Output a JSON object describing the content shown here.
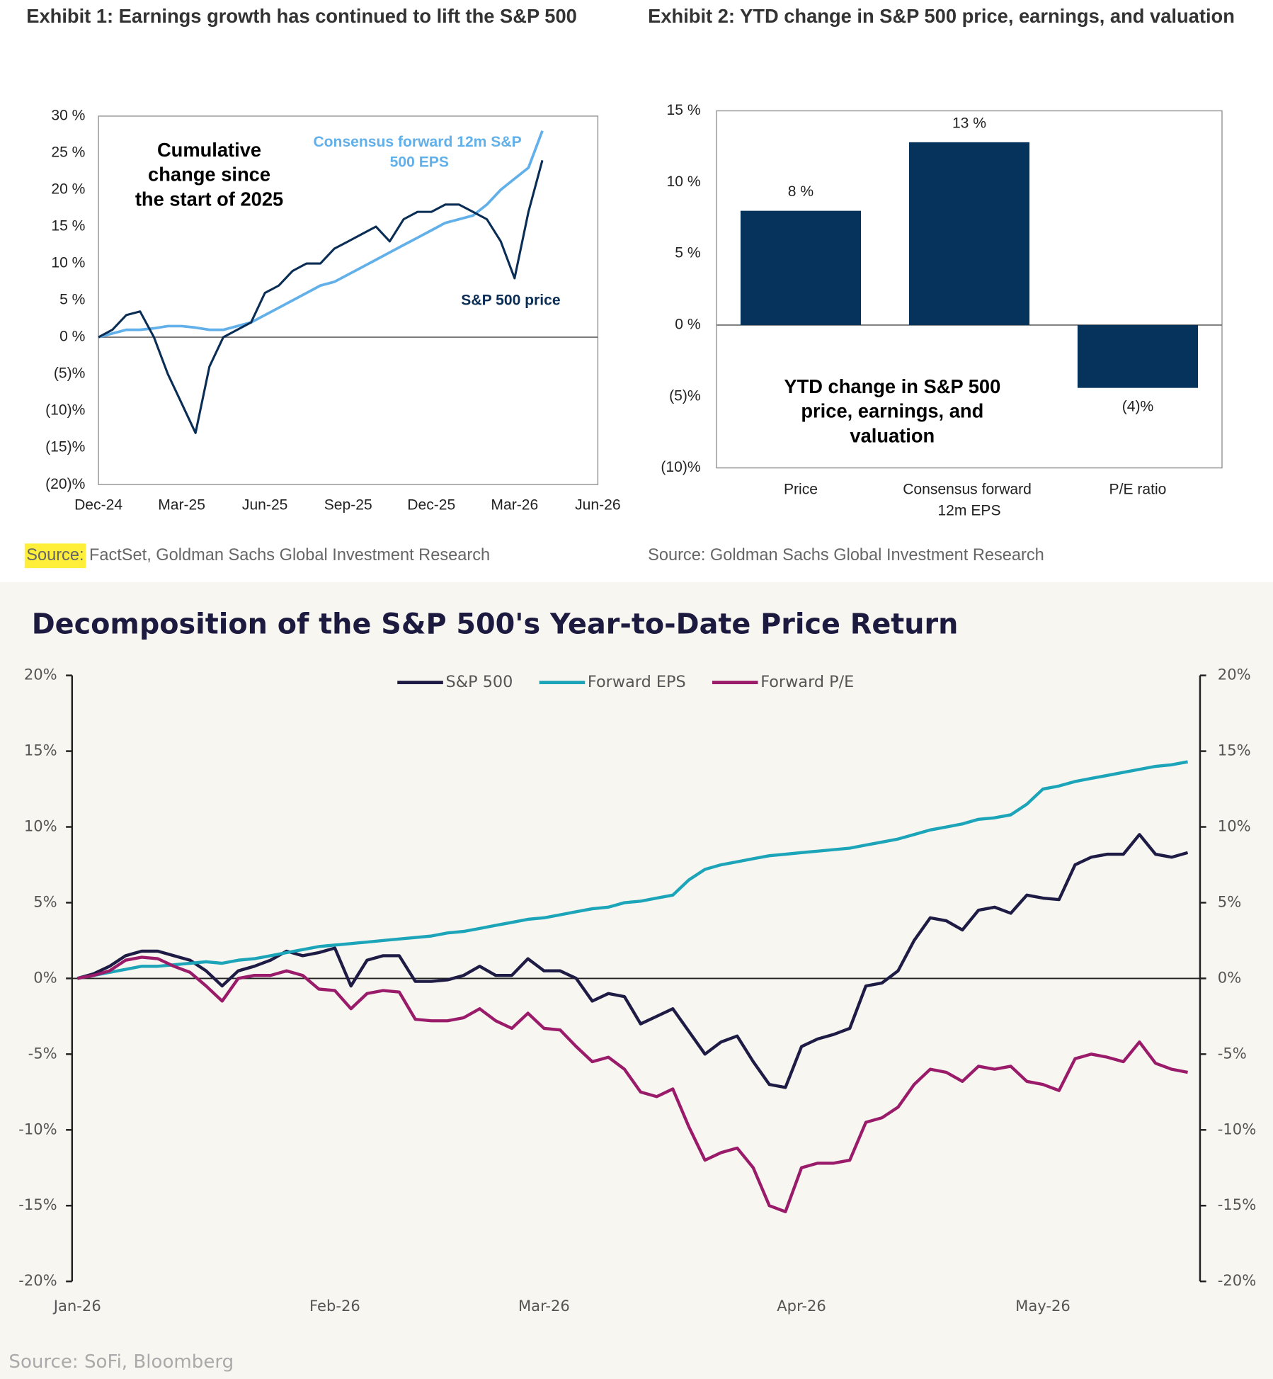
{
  "chart_data": [
    {
      "type": "line",
      "title": "Exhibit 1: Earnings growth has continued to lift the S&P 500",
      "annotation": [
        "Cumulative",
        "change since",
        "the start of 2025"
      ],
      "categories": [
        "Dec-24",
        null,
        null,
        null,
        null,
        null,
        "Mar-25",
        null,
        null,
        null,
        null,
        null,
        "Jun-25",
        null,
        null,
        null,
        null,
        null,
        "Sep-25",
        null,
        null,
        null,
        null,
        null,
        "Dec-25",
        null,
        null,
        null,
        null,
        null,
        "Mar-26",
        null,
        null,
        null,
        null,
        null,
        "Jun-26"
      ],
      "series": [
        {
          "name": "Consensus forward 12m S&P 500 EPS",
          "color": "#62b0ea",
          "values": [
            0,
            0.5,
            1,
            1,
            1.2,
            1.5,
            1.5,
            1.3,
            1,
            1,
            1.5,
            2,
            3,
            4,
            5,
            6,
            7,
            7.5,
            8.5,
            9.5,
            10.5,
            11.5,
            12.5,
            13.5,
            14.5,
            15.5,
            16,
            16.5,
            18,
            20,
            21.5,
            23,
            28,
            null,
            null,
            null,
            null
          ]
        },
        {
          "name": "S&P 500 price",
          "color": "#0a2d55",
          "values": [
            0,
            1,
            3,
            3.5,
            0,
            -5,
            -9,
            -13,
            -4,
            0,
            1,
            2,
            6,
            7,
            9,
            10,
            10,
            12,
            13,
            14,
            15,
            13,
            16,
            17,
            17,
            18,
            18,
            17,
            16,
            13,
            8,
            17,
            24,
            null,
            null,
            null,
            null
          ]
        }
      ],
      "ylim": [
        -20,
        30
      ],
      "yticks": [
        {
          "value": 30,
          "label": "30 %"
        },
        {
          "value": 25,
          "label": "25 %"
        },
        {
          "value": 20,
          "label": "20 %"
        },
        {
          "value": 15,
          "label": "15 %"
        },
        {
          "value": 10,
          "label": "10 %"
        },
        {
          "value": 5,
          "label": "5 %"
        },
        {
          "value": 0,
          "label": "0 %"
        },
        {
          "value": -5,
          "label": "(5)%"
        },
        {
          "value": -10,
          "label": "(10)%"
        },
        {
          "value": -15,
          "label": "(15)%"
        },
        {
          "value": -20,
          "label": "(20)%"
        }
      ],
      "source": {
        "label": "Source:",
        "text": "FactSet, Goldman Sachs Global Investment Research"
      }
    },
    {
      "type": "bar",
      "title": "Exhibit 2: YTD change in S&P 500 price, earnings, and valuation",
      "annotation": [
        "YTD change in S&P 500",
        "price, earnings, and",
        "valuation"
      ],
      "categories": [
        "Price",
        "Consensus forward 12m EPS",
        "P/E ratio"
      ],
      "values": [
        8,
        12.8,
        -4.4
      ],
      "value_labels": [
        "8 %",
        "13 %",
        "(4)%"
      ],
      "color": "#05335b",
      "ylim": [
        -10,
        15
      ],
      "yticks": [
        {
          "value": 15,
          "label": "15 %"
        },
        {
          "value": 10,
          "label": "10 %"
        },
        {
          "value": 5,
          "label": "5 %"
        },
        {
          "value": 0,
          "label": "0 %"
        },
        {
          "value": -5,
          "label": "(5)%"
        },
        {
          "value": -10,
          "label": "(10)%"
        }
      ],
      "source": "Source: Goldman Sachs Global Investment Research"
    },
    {
      "type": "line",
      "title": "Decomposition of the S&P 500's Year-to-Date Price Return",
      "categories": [
        "Jan-26",
        null,
        null,
        null,
        null,
        null,
        null,
        null,
        null,
        null,
        null,
        null,
        null,
        null,
        null,
        null,
        "Feb-26",
        null,
        null,
        null,
        null,
        null,
        null,
        null,
        null,
        null,
        null,
        null,
        null,
        "Mar-26",
        null,
        null,
        null,
        null,
        null,
        null,
        null,
        null,
        null,
        null,
        null,
        null,
        null,
        null,
        null,
        "Apr-26",
        null,
        null,
        null,
        null,
        null,
        null,
        null,
        null,
        null,
        null,
        null,
        null,
        null,
        null,
        "May-26",
        null,
        null,
        null,
        null,
        null,
        null,
        null,
        null,
        null
      ],
      "series": [
        {
          "name": "S&P 500",
          "color": "#1e1b45",
          "values": [
            0,
            0.3,
            0.8,
            1.5,
            1.8,
            1.8,
            1.5,
            1.2,
            0.5,
            -0.5,
            0.5,
            0.8,
            1.2,
            1.8,
            1.5,
            1.7,
            2,
            -0.5,
            1.2,
            1.5,
            1.5,
            -0.2,
            -0.2,
            -0.1,
            0.2,
            0.8,
            0.2,
            0.2,
            1.3,
            0.5,
            0.5,
            0,
            -1.5,
            -1,
            -1.2,
            -3,
            -2.5,
            -2,
            -3.5,
            -5,
            -4.2,
            -3.8,
            -5.5,
            -7,
            -7.2,
            -4.5,
            -4,
            -3.7,
            -3.3,
            -0.5,
            -0.3,
            0.5,
            2.5,
            4,
            3.8,
            3.2,
            4.5,
            4.7,
            4.3,
            5.5,
            5.3,
            5.2,
            7.5,
            8,
            8.2,
            8.2,
            9.5,
            8.2,
            8,
            8.3
          ]
        },
        {
          "name": "Forward EPS",
          "color": "#1ca4b9",
          "values": [
            0,
            0.2,
            0.4,
            0.6,
            0.8,
            0.8,
            0.9,
            1,
            1.1,
            1,
            1.2,
            1.3,
            1.5,
            1.7,
            1.9,
            2.1,
            2.2,
            2.3,
            2.4,
            2.5,
            2.6,
            2.7,
            2.8,
            3,
            3.1,
            3.3,
            3.5,
            3.7,
            3.9,
            4,
            4.2,
            4.4,
            4.6,
            4.7,
            5,
            5.1,
            5.3,
            5.5,
            6.5,
            7.2,
            7.5,
            7.7,
            7.9,
            8.1,
            8.2,
            8.3,
            8.4,
            8.5,
            8.6,
            8.8,
            9,
            9.2,
            9.5,
            9.8,
            10,
            10.2,
            10.5,
            10.6,
            10.8,
            11.5,
            12.5,
            12.7,
            13,
            13.2,
            13.4,
            13.6,
            13.8,
            14,
            14.1,
            14.3
          ]
        },
        {
          "name": "Forward P/E",
          "color": "#9a1b69",
          "values": [
            0,
            0.2,
            0.5,
            1.2,
            1.4,
            1.3,
            0.8,
            0.4,
            -0.5,
            -1.5,
            0,
            0.2,
            0.2,
            0.5,
            0.2,
            -0.7,
            -0.8,
            -2,
            -1,
            -0.8,
            -0.9,
            -2.7,
            -2.8,
            -2.8,
            -2.6,
            -2,
            -2.8,
            -3.3,
            -2.3,
            -3.3,
            -3.4,
            -4.5,
            -5.5,
            -5.2,
            -6,
            -7.5,
            -7.8,
            -7.3,
            -9.8,
            -12,
            -11.5,
            -11.2,
            -12.5,
            -15,
            -15.4,
            -12.5,
            -12.2,
            -12.2,
            -12,
            -9.5,
            -9.2,
            -8.5,
            -7,
            -6,
            -6.2,
            -6.8,
            -5.8,
            -6,
            -5.8,
            -6.8,
            -7,
            -7.4,
            -5.3,
            -5,
            -5.2,
            -5.5,
            -4.2,
            -5.6,
            -6,
            -6.2
          ]
        }
      ],
      "ylim": [
        -20,
        20
      ],
      "yticks": [
        {
          "value": 20,
          "label": "20%"
        },
        {
          "value": 15,
          "label": "15%"
        },
        {
          "value": 10,
          "label": "10%"
        },
        {
          "value": 5,
          "label": "5%"
        },
        {
          "value": 0,
          "label": "0%"
        },
        {
          "value": -5,
          "label": "-5%"
        },
        {
          "value": -10,
          "label": "-10%"
        },
        {
          "value": -15,
          "label": "-15%"
        },
        {
          "value": -20,
          "label": "-20%"
        }
      ],
      "legend": "top",
      "source": "Source: SoFi, Bloomberg"
    }
  ]
}
